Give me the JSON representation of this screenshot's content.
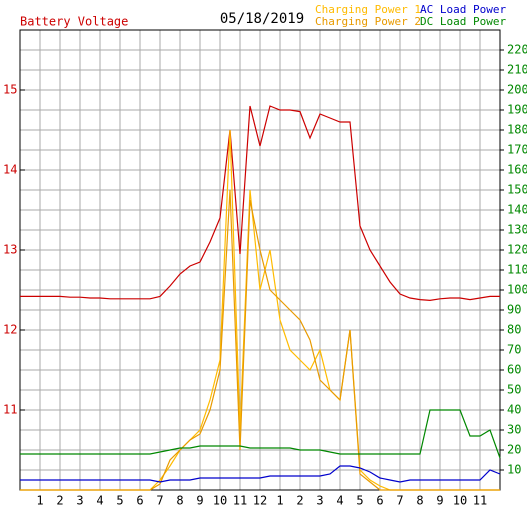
{
  "chart_data": {
    "type": "line",
    "title": "Battery Voltage",
    "subtitle": "05/18/2019",
    "x": [
      0,
      0.5,
      1,
      1.5,
      2,
      2.5,
      3,
      3.5,
      4,
      4.5,
      5,
      5.5,
      6,
      6.5,
      7,
      7.5,
      8,
      8.5,
      9,
      9.5,
      10,
      10.5,
      11,
      11.5,
      12,
      12.5,
      13,
      13.5,
      14,
      14.5,
      15,
      15.5,
      16,
      16.5,
      17,
      17.5,
      18,
      18.5,
      19,
      19.5,
      20,
      20.5,
      21,
      21.5,
      22,
      22.5,
      23,
      23.5,
      24
    ],
    "xlim": [
      0,
      24
    ],
    "xticks": [
      1,
      2,
      3,
      4,
      5,
      6,
      7,
      8,
      9,
      10,
      11,
      12,
      {
        "value": 13,
        "label": "1"
      },
      {
        "value": 14,
        "label": "2"
      },
      {
        "value": 15,
        "label": "3"
      },
      {
        "value": 16,
        "label": "4"
      },
      {
        "value": 17,
        "label": "5"
      },
      {
        "value": 18,
        "label": "6"
      },
      {
        "value": 19,
        "label": "7"
      },
      {
        "value": 20,
        "label": "8"
      },
      {
        "value": 21,
        "label": "9"
      },
      {
        "value": 22,
        "label": "10"
      },
      {
        "value": 23,
        "label": "11"
      }
    ],
    "ylim": [
      10,
      15.75
    ],
    "yticks": [
      11,
      12,
      13,
      14,
      15
    ],
    "y_color": "#cc0000",
    "y2lim": [
      0,
      230
    ],
    "y2ticks": [
      10,
      20,
      30,
      40,
      50,
      60,
      70,
      80,
      90,
      100,
      110,
      120,
      130,
      140,
      150,
      160,
      170,
      180,
      190,
      200,
      210,
      220
    ],
    "y2_color": "#008800",
    "grid": true,
    "series": [
      {
        "name": "Battery Voltage",
        "color": "#cc0000",
        "legend": false,
        "values": [
          12.42,
          12.42,
          12.42,
          12.42,
          12.42,
          12.41,
          12.41,
          12.4,
          12.4,
          12.39,
          12.39,
          12.39,
          12.39,
          12.39,
          12.42,
          12.55,
          12.7,
          12.8,
          12.85,
          13.1,
          13.4,
          14.5,
          12.95,
          14.8,
          14.3,
          14.8,
          14.75,
          14.75,
          14.73,
          14.4,
          14.7,
          14.65,
          14.6,
          14.6,
          13.3,
          13.0,
          12.8,
          12.6,
          12.45,
          12.4,
          12.38,
          12.37,
          12.39,
          12.4,
          12.4,
          12.38,
          12.4,
          12.42,
          12.42
        ]
      },
      {
        "name": "Charging Power 1",
        "color": "#ffbb00",
        "axis": "y2",
        "values": [
          0,
          0,
          0,
          0,
          0,
          0,
          0,
          0,
          0,
          0,
          0,
          0,
          0,
          0,
          5,
          12,
          20,
          25,
          30,
          45,
          65,
          180,
          30,
          150,
          100,
          120,
          85,
          70,
          65,
          60,
          70,
          50,
          45,
          80,
          10,
          5,
          2,
          0,
          0,
          0,
          0,
          0,
          0,
          0,
          0,
          0,
          0,
          0,
          0
        ]
      },
      {
        "name": "Charging Power 2",
        "color": "#e89a00",
        "axis": "y2",
        "values": [
          0,
          0,
          0,
          0,
          0,
          0,
          0,
          0,
          0,
          0,
          0,
          0,
          0,
          0,
          3,
          15,
          20,
          25,
          28,
          40,
          60,
          150,
          20,
          145,
          120,
          100,
          95,
          90,
          85,
          75,
          55,
          50,
          45,
          80,
          8,
          4,
          0,
          0,
          0,
          0,
          0,
          0,
          0,
          0,
          0,
          0,
          0,
          0,
          0
        ]
      },
      {
        "name": "AC Load Power",
        "color": "#0000cc",
        "axis": "y2",
        "values": [
          5,
          5,
          5,
          5,
          5,
          5,
          5,
          5,
          5,
          5,
          5,
          5,
          5,
          5,
          4,
          5,
          5,
          5,
          6,
          6,
          6,
          6,
          6,
          6,
          6,
          7,
          7,
          7,
          7,
          7,
          7,
          8,
          12,
          12,
          11,
          9,
          6,
          5,
          4,
          5,
          5,
          5,
          5,
          5,
          5,
          5,
          5,
          10,
          8
        ]
      },
      {
        "name": "DC Load Power",
        "color": "#008800",
        "axis": "y2",
        "values": [
          18,
          18,
          18,
          18,
          18,
          18,
          18,
          18,
          18,
          18,
          18,
          18,
          18,
          18,
          19,
          20,
          21,
          21,
          22,
          22,
          22,
          22,
          22,
          21,
          21,
          21,
          21,
          21,
          20,
          20,
          20,
          19,
          18,
          18,
          18,
          18,
          18,
          18,
          18,
          18,
          18,
          40,
          40,
          40,
          40,
          27,
          27,
          30,
          16
        ]
      }
    ]
  }
}
